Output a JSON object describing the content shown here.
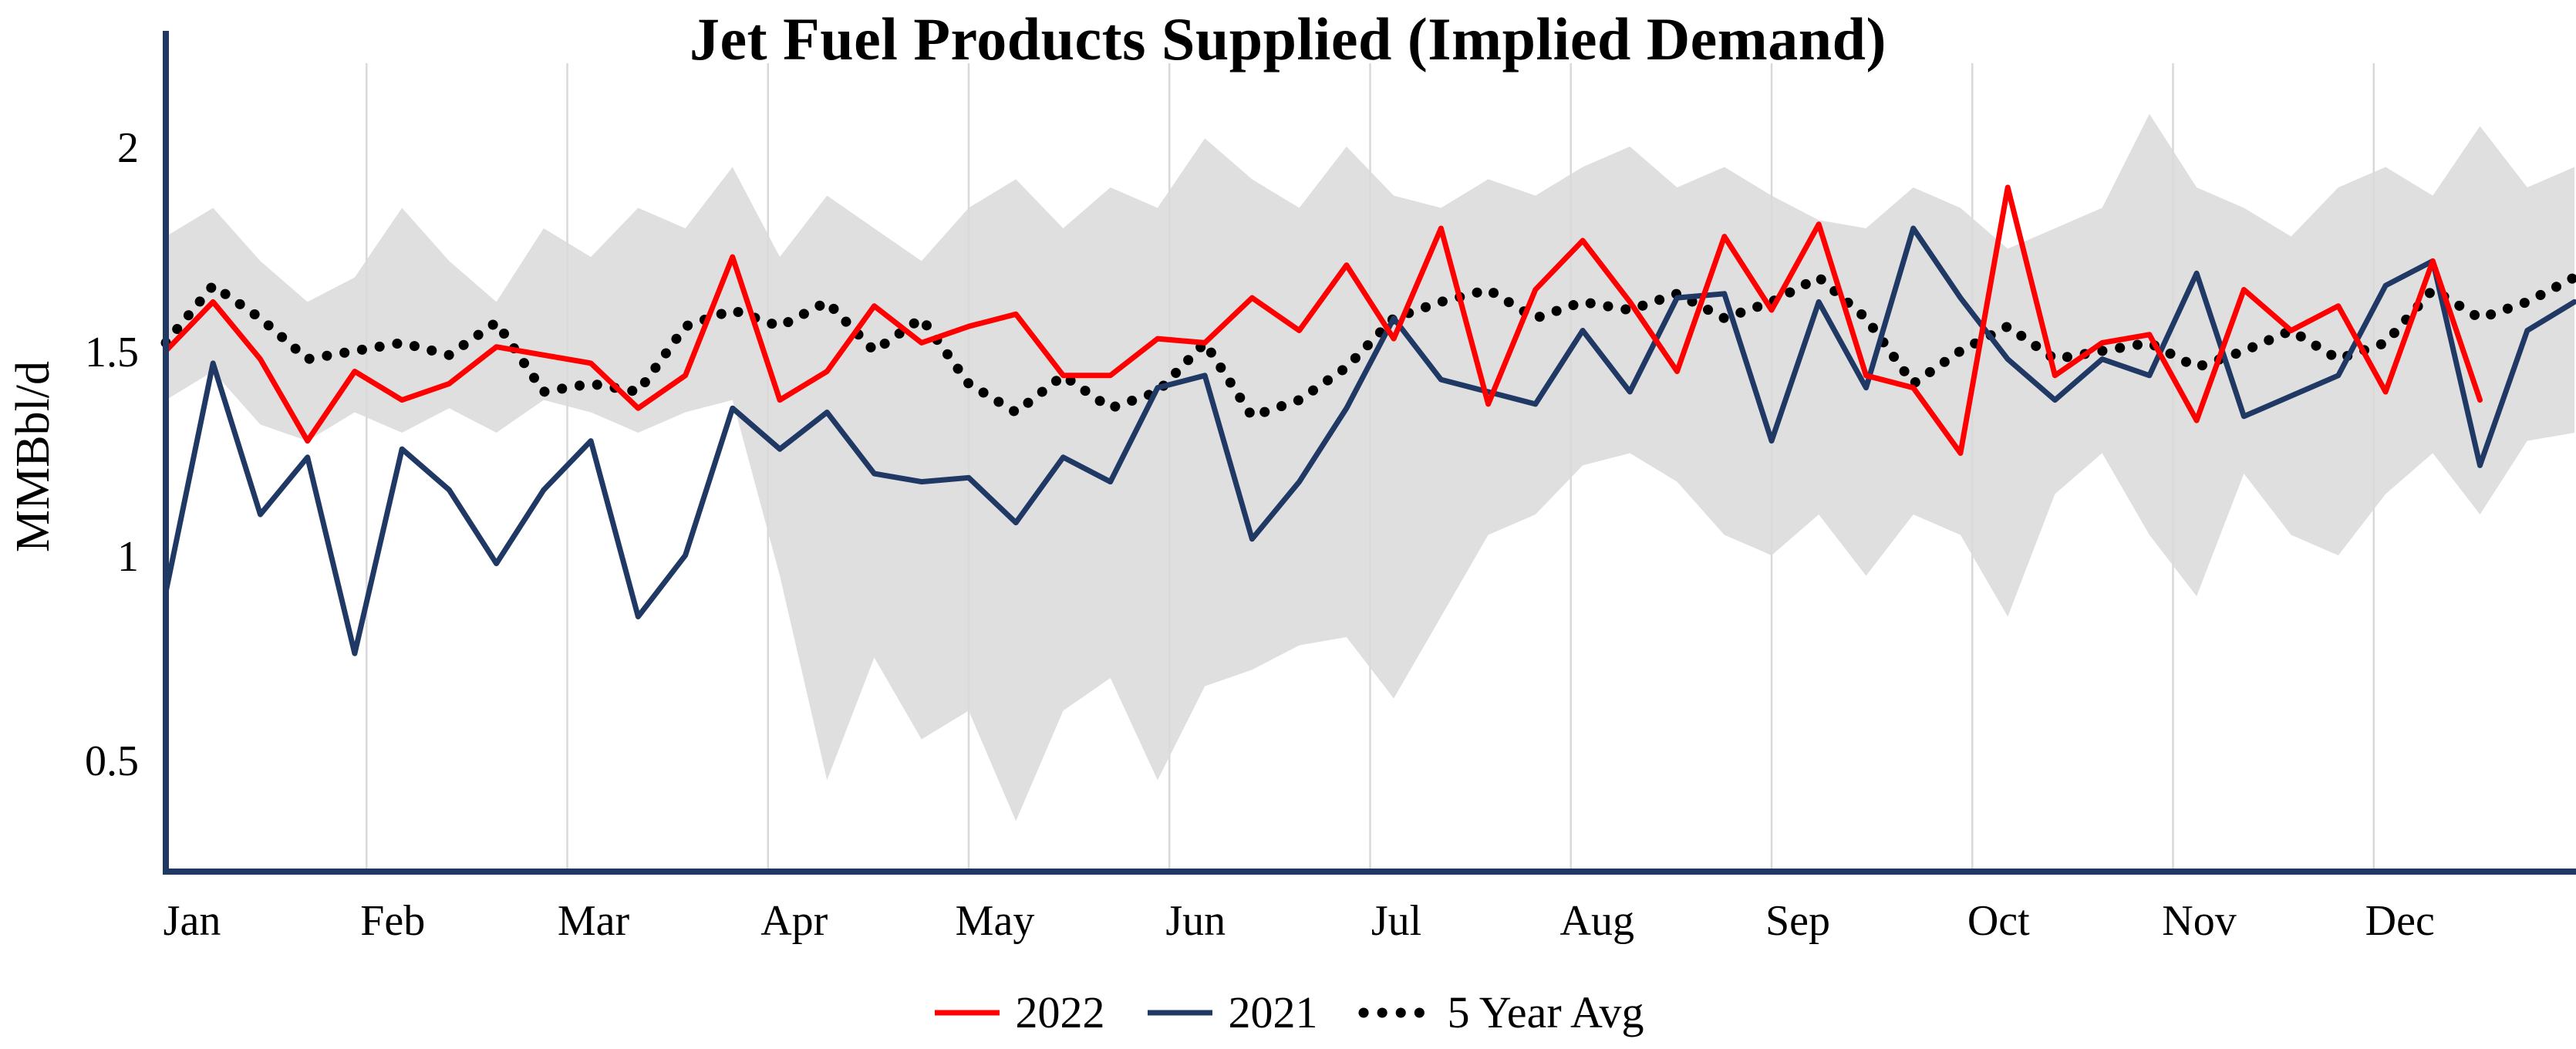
{
  "title": "Jet Fuel Products Supplied (Implied Demand)",
  "y_axis": {
    "label": "MMBbl/d"
  },
  "colors": {
    "axis": "#1f3864",
    "gridline": "#d9d9d9",
    "band": "#d9d9d9",
    "series_2022": "#ff0000",
    "series_2021": "#1f3864",
    "series_avg": "#000000"
  },
  "legend": [
    {
      "label": "2022",
      "color": "#ff0000",
      "style": "solid"
    },
    {
      "label": "2021",
      "color": "#1f3864",
      "style": "solid"
    },
    {
      "label": "5 Year Avg",
      "color": "#000000",
      "style": "dotted"
    }
  ],
  "chart_data": {
    "type": "line",
    "title": "Jet Fuel Products Supplied (Implied Demand)",
    "xlabel": "",
    "ylabel": "MMBbl/d",
    "x_unit": "week of year (weekly data, Jan through Dec)",
    "weeks": 52,
    "month_labels": [
      "Jan",
      "Feb",
      "Mar",
      "Apr",
      "May",
      "Jun",
      "Jul",
      "Aug",
      "Sep",
      "Oct",
      "Nov",
      "Dec"
    ],
    "y_ticks": [
      {
        "value": 2,
        "label": "2"
      },
      {
        "value": 1.5,
        "label": "1.5"
      },
      {
        "value": 1,
        "label": "1"
      },
      {
        "value": 0.5,
        "label": "0.5"
      }
    ],
    "ylim": [
      0.23,
      2.21
    ],
    "grid": "vertical gridlines at each month",
    "legend_position": "bottom center",
    "series": [
      {
        "name": "2022",
        "color": "#ff0000",
        "style": "solid",
        "values": [
          1.5,
          1.62,
          1.48,
          1.28,
          1.45,
          1.38,
          1.42,
          1.51,
          1.49,
          1.47,
          1.36,
          1.44,
          1.73,
          1.38,
          1.45,
          1.61,
          1.52,
          1.56,
          1.59,
          1.44,
          1.44,
          1.53,
          1.52,
          1.63,
          1.55,
          1.71,
          1.53,
          1.8,
          1.37,
          1.65,
          1.77,
          1.62,
          1.45,
          1.78,
          1.6,
          1.81,
          1.44,
          1.41,
          1.25,
          1.9,
          1.44,
          1.52,
          1.54,
          1.33,
          1.65,
          1.55,
          1.61,
          1.4,
          1.72,
          1.38,
          null,
          null
        ]
      },
      {
        "name": "2021",
        "color": "#1f3864",
        "style": "solid",
        "values": [
          0.91,
          1.47,
          1.1,
          1.24,
          0.76,
          1.26,
          1.16,
          0.98,
          1.16,
          1.28,
          0.85,
          1.0,
          1.36,
          1.26,
          1.35,
          1.2,
          1.18,
          1.19,
          1.08,
          1.24,
          1.18,
          1.41,
          1.44,
          1.04,
          1.18,
          1.36,
          1.58,
          1.43,
          1.4,
          1.37,
          1.55,
          1.4,
          1.63,
          1.64,
          1.28,
          1.62,
          1.41,
          1.8,
          1.63,
          1.48,
          1.38,
          1.48,
          1.44,
          1.69,
          1.34,
          1.39,
          1.44,
          1.66,
          1.72,
          1.22,
          1.55,
          1.62
        ]
      },
      {
        "name": "5 Year Avg",
        "color": "#000000",
        "style": "dotted",
        "values": [
          1.52,
          1.66,
          1.58,
          1.48,
          1.5,
          1.52,
          1.49,
          1.57,
          1.4,
          1.42,
          1.4,
          1.56,
          1.6,
          1.56,
          1.62,
          1.5,
          1.58,
          1.42,
          1.35,
          1.44,
          1.36,
          1.4,
          1.52,
          1.34,
          1.38,
          1.46,
          1.58,
          1.62,
          1.65,
          1.58,
          1.62,
          1.6,
          1.64,
          1.58,
          1.62,
          1.68,
          1.58,
          1.42,
          1.5,
          1.56,
          1.48,
          1.5,
          1.52,
          1.46,
          1.5,
          1.55,
          1.48,
          1.52,
          1.65,
          1.58,
          1.62,
          1.68
        ]
      }
    ],
    "band": {
      "name": "5-year min-max range",
      "color": "#d9d9d9",
      "max": [
        1.78,
        1.85,
        1.72,
        1.62,
        1.68,
        1.85,
        1.72,
        1.62,
        1.8,
        1.73,
        1.85,
        1.8,
        1.95,
        1.73,
        1.88,
        1.8,
        1.72,
        1.85,
        1.92,
        1.8,
        1.9,
        1.85,
        2.02,
        1.92,
        1.85,
        2.0,
        1.88,
        1.85,
        1.92,
        1.88,
        1.95,
        2.0,
        1.9,
        1.95,
        1.88,
        1.82,
        1.8,
        1.9,
        1.85,
        1.75,
        1.8,
        1.85,
        2.08,
        1.9,
        1.85,
        1.78,
        1.9,
        1.95,
        1.88,
        2.05,
        1.9,
        1.95
      ],
      "min": [
        1.38,
        1.45,
        1.32,
        1.28,
        1.35,
        1.3,
        1.36,
        1.3,
        1.38,
        1.35,
        1.3,
        1.35,
        1.38,
        0.95,
        0.45,
        0.75,
        0.55,
        0.62,
        0.35,
        0.62,
        0.7,
        0.45,
        0.68,
        0.72,
        0.78,
        0.8,
        0.65,
        0.85,
        1.05,
        1.1,
        1.22,
        1.25,
        1.18,
        1.05,
        1.0,
        1.1,
        0.95,
        1.1,
        1.05,
        0.85,
        1.15,
        1.25,
        1.05,
        0.9,
        1.2,
        1.05,
        1.0,
        1.15,
        1.25,
        1.1,
        1.28,
        1.3
      ]
    }
  }
}
